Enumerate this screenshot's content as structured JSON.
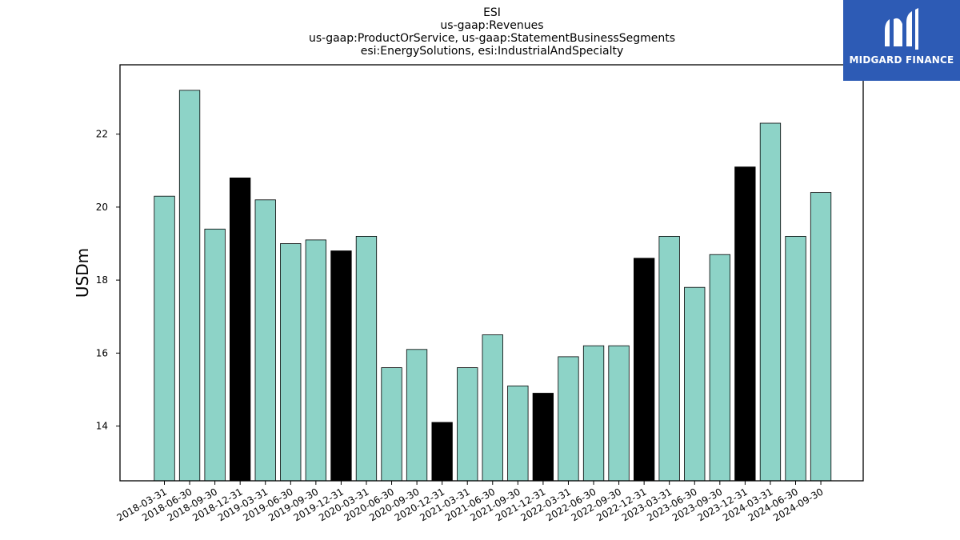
{
  "brand": {
    "name": "MIDGARD FINANCE",
    "bg_color": "#2d5bb5",
    "icon": "midgard-logo-icon"
  },
  "chart_data": {
    "type": "bar",
    "title_lines": [
      "ESI",
      "us-gaap:Revenues",
      "us-gaap:ProductOrService, us-gaap:StatementBusinessSegments",
      "esi:EnergySolutions, esi:IndustrialAndSpecialty"
    ],
    "xlabel": "",
    "ylabel": "USDm",
    "ylim": [
      12.5,
      23.9
    ],
    "yticks": [
      14,
      16,
      18,
      20,
      22
    ],
    "grid": false,
    "colors": {
      "quarter": "#8dd3c7",
      "year_end": "#000000"
    },
    "categories": [
      "2018-03-31",
      "2018-06-30",
      "2018-09-30",
      "2018-12-31",
      "2019-03-31",
      "2019-06-30",
      "2019-09-30",
      "2019-12-31",
      "2020-03-31",
      "2020-06-30",
      "2020-09-30",
      "2020-12-31",
      "2021-03-31",
      "2021-06-30",
      "2021-09-30",
      "2021-12-31",
      "2022-03-31",
      "2022-06-30",
      "2022-09-30",
      "2022-12-31",
      "2023-03-31",
      "2023-06-30",
      "2023-09-30",
      "2023-12-31",
      "2024-03-31",
      "2024-06-30",
      "2024-09-30"
    ],
    "values": [
      20.3,
      23.2,
      19.4,
      20.8,
      20.2,
      19.0,
      19.1,
      18.8,
      19.2,
      15.6,
      16.1,
      14.1,
      15.6,
      16.5,
      15.1,
      14.9,
      15.9,
      16.2,
      16.2,
      18.6,
      19.2,
      17.8,
      18.7,
      21.1,
      22.3,
      19.2,
      20.4
    ]
  }
}
